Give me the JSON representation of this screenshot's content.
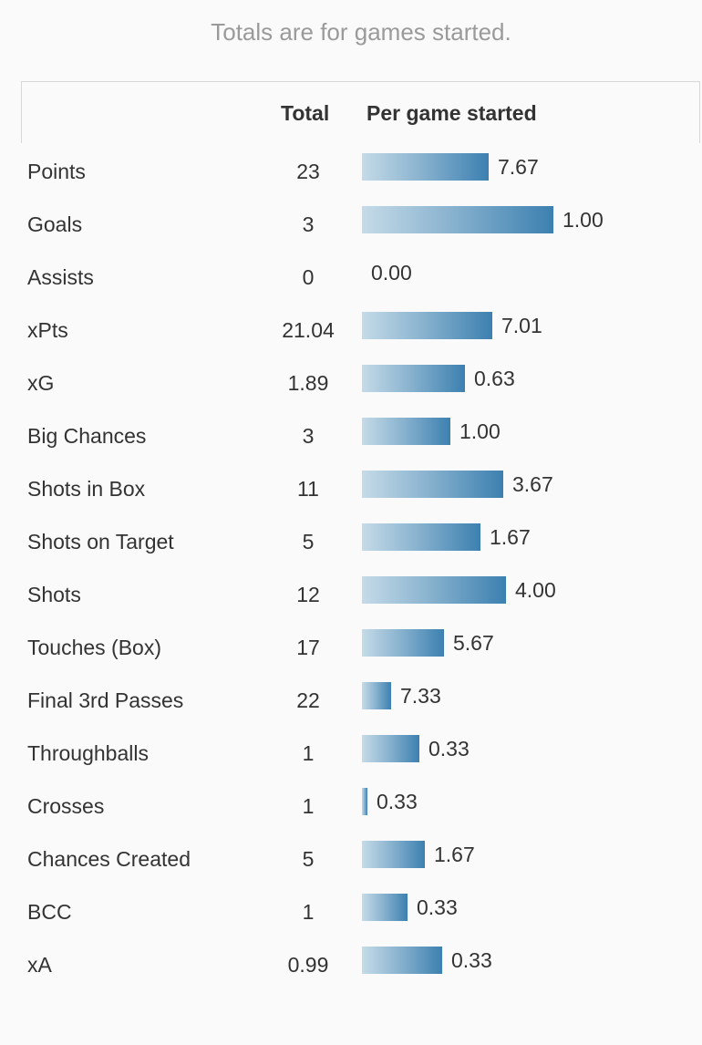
{
  "caption": "Totals are for games started.",
  "table": {
    "headers": {
      "total": "Total",
      "per_game": "Per game started"
    },
    "rows": [
      {
        "label": "Points",
        "total": "23",
        "per_game": "7.67",
        "bar_fraction": 0.66
      },
      {
        "label": "Goals",
        "total": "3",
        "per_game": "1.00",
        "bar_fraction": 1.0
      },
      {
        "label": "Assists",
        "total": "0",
        "per_game": "0.00",
        "bar_fraction": 0.0
      },
      {
        "label": "xPts",
        "total": "21.04",
        "per_game": "7.01",
        "bar_fraction": 0.68
      },
      {
        "label": "xG",
        "total": "1.89",
        "per_game": "0.63",
        "bar_fraction": 0.54
      },
      {
        "label": "Big Chances",
        "total": "3",
        "per_game": "1.00",
        "bar_fraction": 0.46
      },
      {
        "label": "Shots in Box",
        "total": "11",
        "per_game": "3.67",
        "bar_fraction": 0.74
      },
      {
        "label": "Shots on Target",
        "total": "5",
        "per_game": "1.67",
        "bar_fraction": 0.62
      },
      {
        "label": "Shots",
        "total": "12",
        "per_game": "4.00",
        "bar_fraction": 0.75
      },
      {
        "label": "Touches (Box)",
        "total": "17",
        "per_game": "5.67",
        "bar_fraction": 0.43
      },
      {
        "label": "Final 3rd Passes",
        "total": "22",
        "per_game": "7.33",
        "bar_fraction": 0.15
      },
      {
        "label": "Throughballs",
        "total": "1",
        "per_game": "0.33",
        "bar_fraction": 0.3
      },
      {
        "label": "Crosses",
        "total": "1",
        "per_game": "0.33",
        "bar_fraction": 0.03
      },
      {
        "label": "Chances Created",
        "total": "5",
        "per_game": "1.67",
        "bar_fraction": 0.33
      },
      {
        "label": "BCC",
        "total": "1",
        "per_game": "0.33",
        "bar_fraction": 0.24
      },
      {
        "label": "xA",
        "total": "0.99",
        "per_game": "0.33",
        "bar_fraction": 0.42
      }
    ]
  },
  "colors": {
    "bar_start": "#c5dbe8",
    "bar_end": "#3c80b0",
    "text": "#333333",
    "caption": "#9a9a9a"
  }
}
